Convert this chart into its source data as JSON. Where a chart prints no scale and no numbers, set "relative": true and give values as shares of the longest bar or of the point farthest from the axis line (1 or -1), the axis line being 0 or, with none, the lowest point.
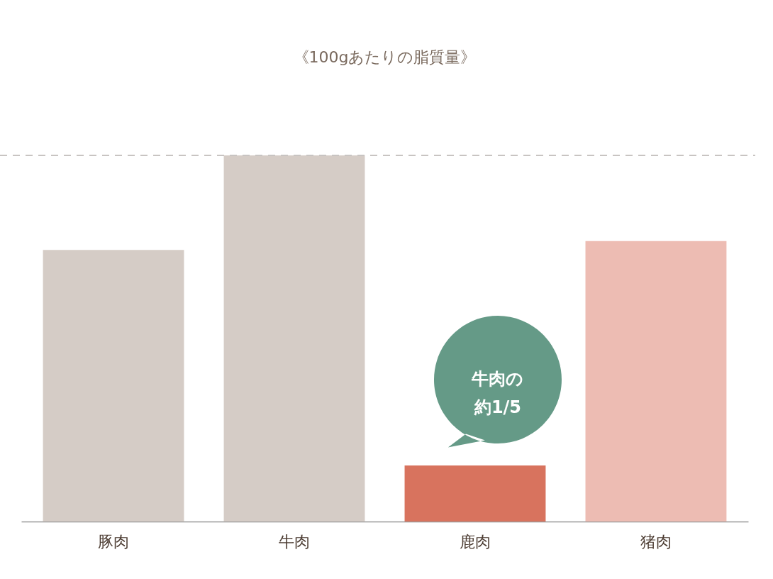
{
  "chart_data": {
    "type": "bar",
    "title": "《100gあたりの脂質量》",
    "relative": true,
    "categories": [
      "豚肉",
      "牛肉",
      "鹿肉",
      "猪肉"
    ],
    "values": [
      0.742,
      1,
      0.153,
      0.766
    ],
    "colors": [
      "#d5ccc6",
      "#d5ccc6",
      "#d8735e",
      "#edbcb3"
    ],
    "ref_lines": [
      {
        "axis": "y",
        "value": 1,
        "color": "#c8c4c2",
        "line_style": "dashed"
      }
    ],
    "annotations": [
      {
        "text": "牛肉の約1/5",
        "x": "鹿肉",
        "y": 0.153
      }
    ]
  }
}
